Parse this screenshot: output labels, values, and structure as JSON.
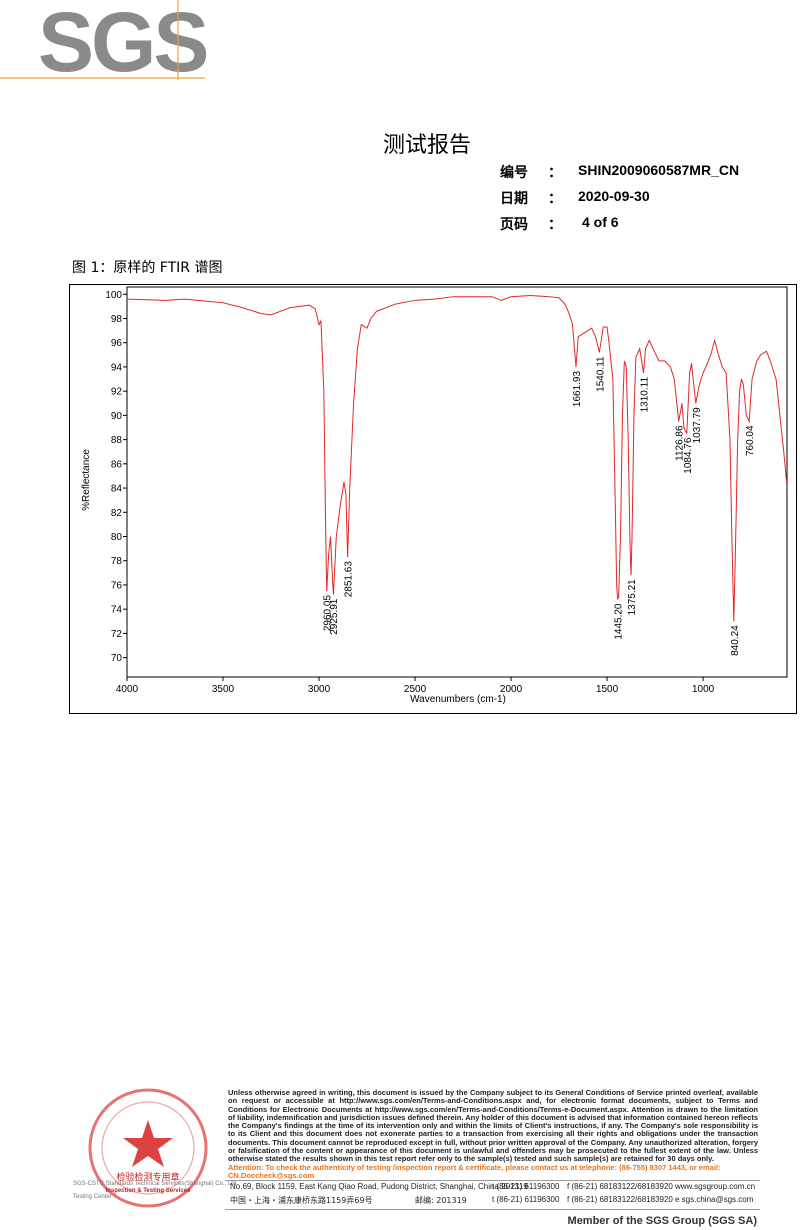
{
  "header": {
    "logo": "SGS",
    "title": "测试报告",
    "fields": [
      {
        "label": "编号",
        "sep": "：",
        "value": "SHIN2009060587MR_CN"
      },
      {
        "label": "日期",
        "sep": "：",
        "value": "2020-09-30"
      },
      {
        "label": "页码",
        "sep": "：",
        "value": "4 of 6"
      }
    ]
  },
  "caption": "图 1：原样的 FTIR 谱图",
  "chart_data": {
    "type": "line",
    "ylabel": "%Reflectance",
    "xlabel": "Wavenumbers (cm-1)",
    "color": "#e02828",
    "xlim": [
      4000,
      563
    ],
    "xticks": [
      4000,
      3500,
      3000,
      2500,
      2000,
      1500,
      1000
    ],
    "ylim": [
      68.4,
      100.6
    ],
    "yticks": [
      70,
      72,
      74,
      76,
      78,
      80,
      82,
      84,
      86,
      88,
      90,
      92,
      94,
      96,
      98,
      100
    ],
    "x": [
      4000,
      3800,
      3700,
      3500,
      3400,
      3300,
      3250,
      3150,
      3050,
      3020,
      3000,
      2990,
      2975,
      2965,
      2960,
      2950,
      2940,
      2930,
      2925,
      2910,
      2890,
      2870,
      2860,
      2851,
      2840,
      2820,
      2800,
      2780,
      2750,
      2730,
      2700,
      2600,
      2500,
      2400,
      2300,
      2200,
      2100,
      2050,
      2000,
      1900,
      1800,
      1750,
      1720,
      1700,
      1680,
      1662,
      1650,
      1620,
      1600,
      1580,
      1560,
      1540,
      1520,
      1500,
      1490,
      1470,
      1460,
      1450,
      1445,
      1440,
      1430,
      1420,
      1410,
      1400,
      1390,
      1380,
      1375,
      1370,
      1360,
      1350,
      1330,
      1310,
      1300,
      1280,
      1260,
      1230,
      1200,
      1170,
      1150,
      1127,
      1110,
      1100,
      1085,
      1070,
      1060,
      1045,
      1038,
      1020,
      1000,
      980,
      960,
      940,
      920,
      900,
      880,
      860,
      850,
      840,
      830,
      820,
      810,
      800,
      790,
      775,
      760,
      745,
      720,
      700,
      670,
      650,
      620,
      600,
      580,
      565
    ],
    "values": [
      99.6,
      99.5,
      99.6,
      99.3,
      98.9,
      98.4,
      98.3,
      98.9,
      99.1,
      98.8,
      97.5,
      97.8,
      92,
      80,
      75.5,
      78.5,
      80,
      76.5,
      75.2,
      80,
      82.5,
      84.5,
      83.5,
      78.3,
      84,
      91,
      95.5,
      97.5,
      97.2,
      98,
      98.6,
      99.2,
      99.5,
      99.6,
      99.8,
      99.8,
      99.8,
      99.5,
      99.8,
      99.9,
      99.8,
      99.7,
      99.2,
      98.5,
      97.5,
      94,
      96.5,
      96.8,
      97,
      97.2,
      96.5,
      95.2,
      97.3,
      97.3,
      96,
      93,
      85,
      76,
      74.8,
      75,
      80,
      90,
      94.5,
      94,
      88,
      79,
      76.8,
      80,
      90,
      94.8,
      95.5,
      93.5,
      95.5,
      96.2,
      95.5,
      94.5,
      94.5,
      94,
      93,
      89.5,
      91,
      89,
      88.5,
      93.5,
      94.3,
      92,
      91,
      92.5,
      93.5,
      94.2,
      95,
      96.2,
      95,
      94,
      93.5,
      88,
      80,
      73,
      80,
      88,
      92,
      93,
      92.5,
      90,
      89.5,
      93,
      94.5,
      95,
      95.3,
      94.5,
      93,
      90,
      87,
      84.5
    ],
    "annotations": [
      {
        "text": "2960.05",
        "x": 2960.05,
        "y": 75.5
      },
      {
        "text": "2925.91",
        "x": 2925.91,
        "y": 75.2
      },
      {
        "text": "2851.63",
        "x": 2851.63,
        "y": 78.3
      },
      {
        "text": "1661.93",
        "x": 1661.93,
        "y": 94
      },
      {
        "text": "1540.11",
        "x": 1540.11,
        "y": 95.2
      },
      {
        "text": "1445.20",
        "x": 1445.2,
        "y": 74.8
      },
      {
        "text": "1375.21",
        "x": 1375.21,
        "y": 76.8
      },
      {
        "text": "1310.11",
        "x": 1310.11,
        "y": 93.5
      },
      {
        "text": "1126.86",
        "x": 1126.86,
        "y": 89.5
      },
      {
        "text": "1084.76",
        "x": 1084.76,
        "y": 88.5
      },
      {
        "text": "1037.79",
        "x": 1037.79,
        "y": 91
      },
      {
        "text": "840.24",
        "x": 840.24,
        "y": 73
      },
      {
        "text": "760.04",
        "x": 760.04,
        "y": 89.5
      }
    ]
  },
  "footer": {
    "legal": "Unless otherwise agreed in writing, this document is issued by the Company subject to its General Conditions of Service printed overleaf, available on request or accessible at http://www.sgs.com/en/Terms-and-Conditions.aspx and, for electronic format documents, subject to Terms and Conditions for Electronic Documents at http://www.sgs.com/en/Terms-and-Conditions/Terms-e-Document.aspx. Attention is drawn to the limitation of liability, indemnification and jurisdiction issues defined therein. Any holder of this document is advised that information contained hereon reflects the Company's findings at the time of its intervention only and within the limits of Client's instructions, if any. The Company's sole responsibility is to its Client and this document does not exonerate parties to a transaction from exercising all their rights and obligations under the transaction documents. This document cannot be reproduced except in full, without prior written approval of the Company. Any unauthorized alteration, forgery or falsification of the content or appearance of this document is unlawful and offenders may be prosecuted to the fullest extent of the law. Unless otherwise stated the results shown in this test report refer only to the sample(s) tested and such sample(s) are retained for 30 days only.",
    "attention": "Attention: To check the authenticity of testing /inspection report & certificate, please contact us at telephone: (86-755) 8307 1443, or email: CN.Doccheck@sgs.com",
    "address_en": [
      "No.69, Block 1159, East Kang Qiao Road, Pudong District, Shanghai, China  201319",
      "t (86-21) 61196300",
      "f (86-21) 68183122/68183920",
      "www.sgsgroup.com.cn"
    ],
    "address_cn": [
      "中国・上海・浦东康桥东路1159弄69号",
      "邮编: 201319",
      "t (86-21) 61196300",
      "f (86-21) 68183122/68183920",
      "e sgs.china@sgs.com"
    ],
    "stamp": {
      "seal": "检验检测专用章",
      "service": "Inspection & Testing Services",
      "company": "SGS-CSTC Standards Technical Services(Shanghai) Co., Ltd.",
      "center": "Testing Center"
    },
    "member": "Member of the SGS Group (SGS SA)"
  }
}
